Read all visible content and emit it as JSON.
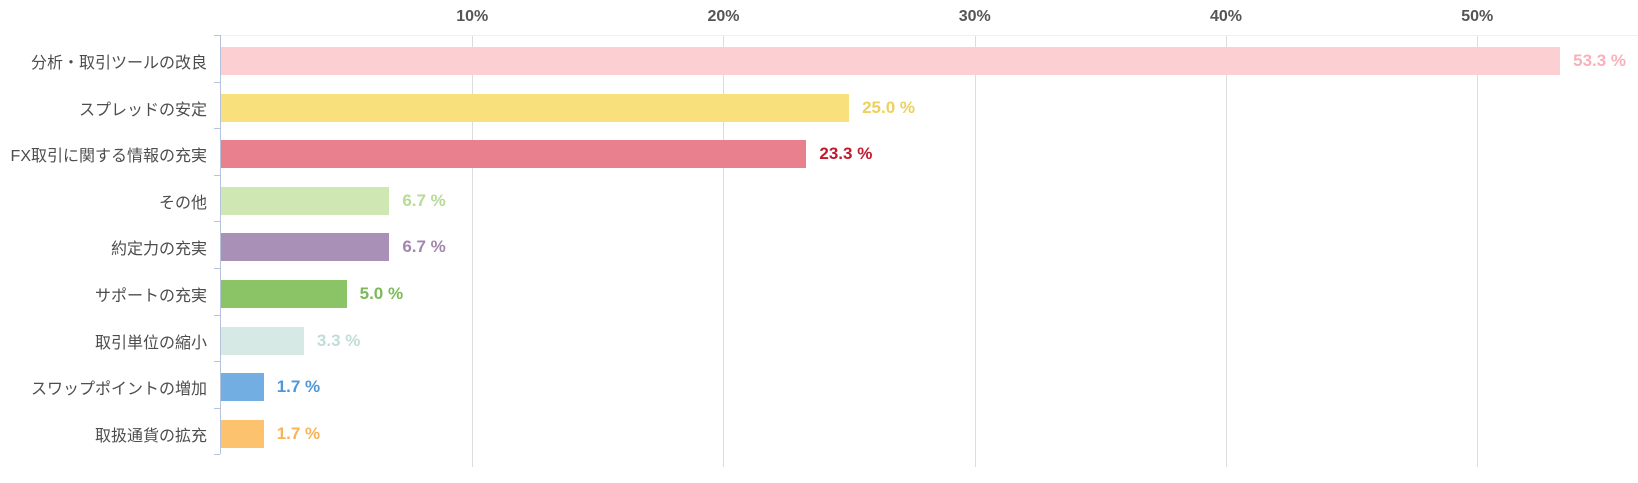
{
  "chart_data": {
    "type": "bar",
    "orientation": "horizontal",
    "title": "",
    "xlabel": "",
    "ylabel": "",
    "categories": [
      "分析・取引ツールの改良",
      "スプレッドの安定",
      "FX取引に関する情報の充実",
      "その他",
      "約定力の充実",
      "サポートの充実",
      "取引単位の縮小",
      "スワップポイントの増加",
      "取扱通貨の拡充"
    ],
    "values": [
      53.3,
      25.0,
      23.3,
      6.7,
      6.7,
      5.0,
      3.3,
      1.7,
      1.7
    ],
    "value_labels": [
      "53.3 %",
      "25.0 %",
      "23.3 %",
      "6.7 %",
      "6.7 %",
      "5.0 %",
      "3.3 %",
      "1.7 %",
      "1.7 %"
    ],
    "bar_colors": [
      "#fccfd3",
      "#f8e07d",
      "#e8808d",
      "#cee7b3",
      "#a990b6",
      "#8bc367",
      "#d7e9e5",
      "#72aee1",
      "#fcc26d"
    ],
    "value_label_colors": [
      "#f8b1ba",
      "#edd05e",
      "#c2182e",
      "#b7db96",
      "#a286ad",
      "#7bb957",
      "#c1ddd8",
      "#4f97d6",
      "#f9b359"
    ],
    "x_axis": {
      "position": "top",
      "tick_labels": [
        "10%",
        "20%",
        "30%",
        "40%",
        "50%"
      ],
      "tick_values": [
        10,
        20,
        30,
        40,
        50
      ],
      "min": 0,
      "max": 56.4,
      "unit": "%"
    },
    "grid": true,
    "legend": "none",
    "colors": {
      "background": "#ffffff",
      "gridline": "#dcdcdc",
      "x_tick_mark": "#a8a8a8",
      "x_tick_label": "#555555",
      "y_axis_line": "#b6c3da",
      "category_label": "#4d4d4d"
    }
  }
}
